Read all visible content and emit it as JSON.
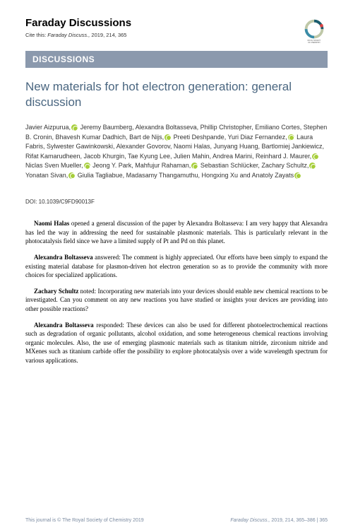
{
  "header": {
    "journal_title": "Faraday Discussions",
    "cite_label": "Cite this:",
    "cite_journal": "Faraday Discuss.,",
    "cite_rest": "2019, 214, 365",
    "logo_text": "ROYAL SOCIETY OF CHEMISTRY"
  },
  "banner": "DISCUSSIONS",
  "title": "New materials for hot electron generation: general discussion",
  "authors": [
    {
      "name": "Javier Aizpurua,",
      "orcid": true
    },
    {
      "name": " Jeremy Baumberg, Alexandra Boltasseva,",
      "orcid": false
    },
    {
      "name": "Phillip Christopher, Emiliano Cortes, Stephen B. Cronin,",
      "orcid": false
    },
    {
      "name": "Bhavesh Kumar Dadhich, Bart de Nijs,",
      "orcid": true
    },
    {
      "name": " Preeti Deshpande, Yuri Diaz Fernandez,",
      "orcid": true
    },
    {
      "name": " Laura Fabris, Sylwester Gawinkowski,",
      "orcid": false
    },
    {
      "name": "Alexander Govorov, Naomi Halas, Junyang Huang,",
      "orcid": false
    },
    {
      "name": "Bartlomiej Jankiewicz, Rifat Kamarudheen, Jacob Khurgin,",
      "orcid": false
    },
    {
      "name": "Tae Kyung Lee, Julien Mahin, Andrea Marini, Reinhard J. Maurer,",
      "orcid": true
    },
    {
      "name": "Niclas Sven Mueller,",
      "orcid": true
    },
    {
      "name": " Jeong Y. Park, Mahfujur Rahaman,",
      "orcid": true
    },
    {
      "name": "Sebastian Schlücker, Zachary Schultz,",
      "orcid": true
    },
    {
      "name": " Yonatan Sivan,",
      "orcid": true
    },
    {
      "name": "Giulia Tagliabue, Madasamy Thangamuthu, Hongxing Xu",
      "orcid": false
    },
    {
      "name": "and Anatoly Zayats",
      "orcid": true
    }
  ],
  "doi": "DOI: 10.1039/C9FD90013F",
  "paragraphs": [
    {
      "speaker": "Naomi Halas",
      "text": " opened a general discussion of the paper by Alexandra Boltasseva: I am very happy that Alexandra has led the way in addressing the need for sustainable plasmonic materials. This is particularly relevant in the photocatalysis field since we have a limited supply of Pt and Pd on this planet."
    },
    {
      "speaker": "Alexandra Boltasseva",
      "text": " answered: The comment is highly appreciated. Our efforts have been simply to expand the existing material database for plasmon-driven hot electron generation so as to provide the community with more choices for specialized applications."
    },
    {
      "speaker": "Zachary Schultz",
      "text": " noted: Incorporating new materials into your devices should enable new chemical reactions to be investigated. Can you comment on any new reactions you have studied or insights your devices are providing into other possible reactions?"
    },
    {
      "speaker": "Alexandra Boltasseva",
      "text": " responded: These devices can also be used for different photoelectrochemical reactions such as degradation of organic pollutants, alcohol oxidation, and some heterogeneous chemical reactions involving organic molecules. Also, the use of emerging plasmonic materials such as titanium nitride, zirconium nitride and MXenes such as titanium carbide offer the possibility to explore photocatalysis over a wide wavelength spectrum for various applications."
    }
  ],
  "footer": {
    "left": "This journal is © The Royal Society of Chemistry 2019",
    "right_journal": "Faraday Discuss.,",
    "right_rest": " 2019, 214, 365–386 | ",
    "page": "365"
  },
  "colors": {
    "banner_bg": "#8b99ad",
    "title_color": "#4a6680"
  }
}
